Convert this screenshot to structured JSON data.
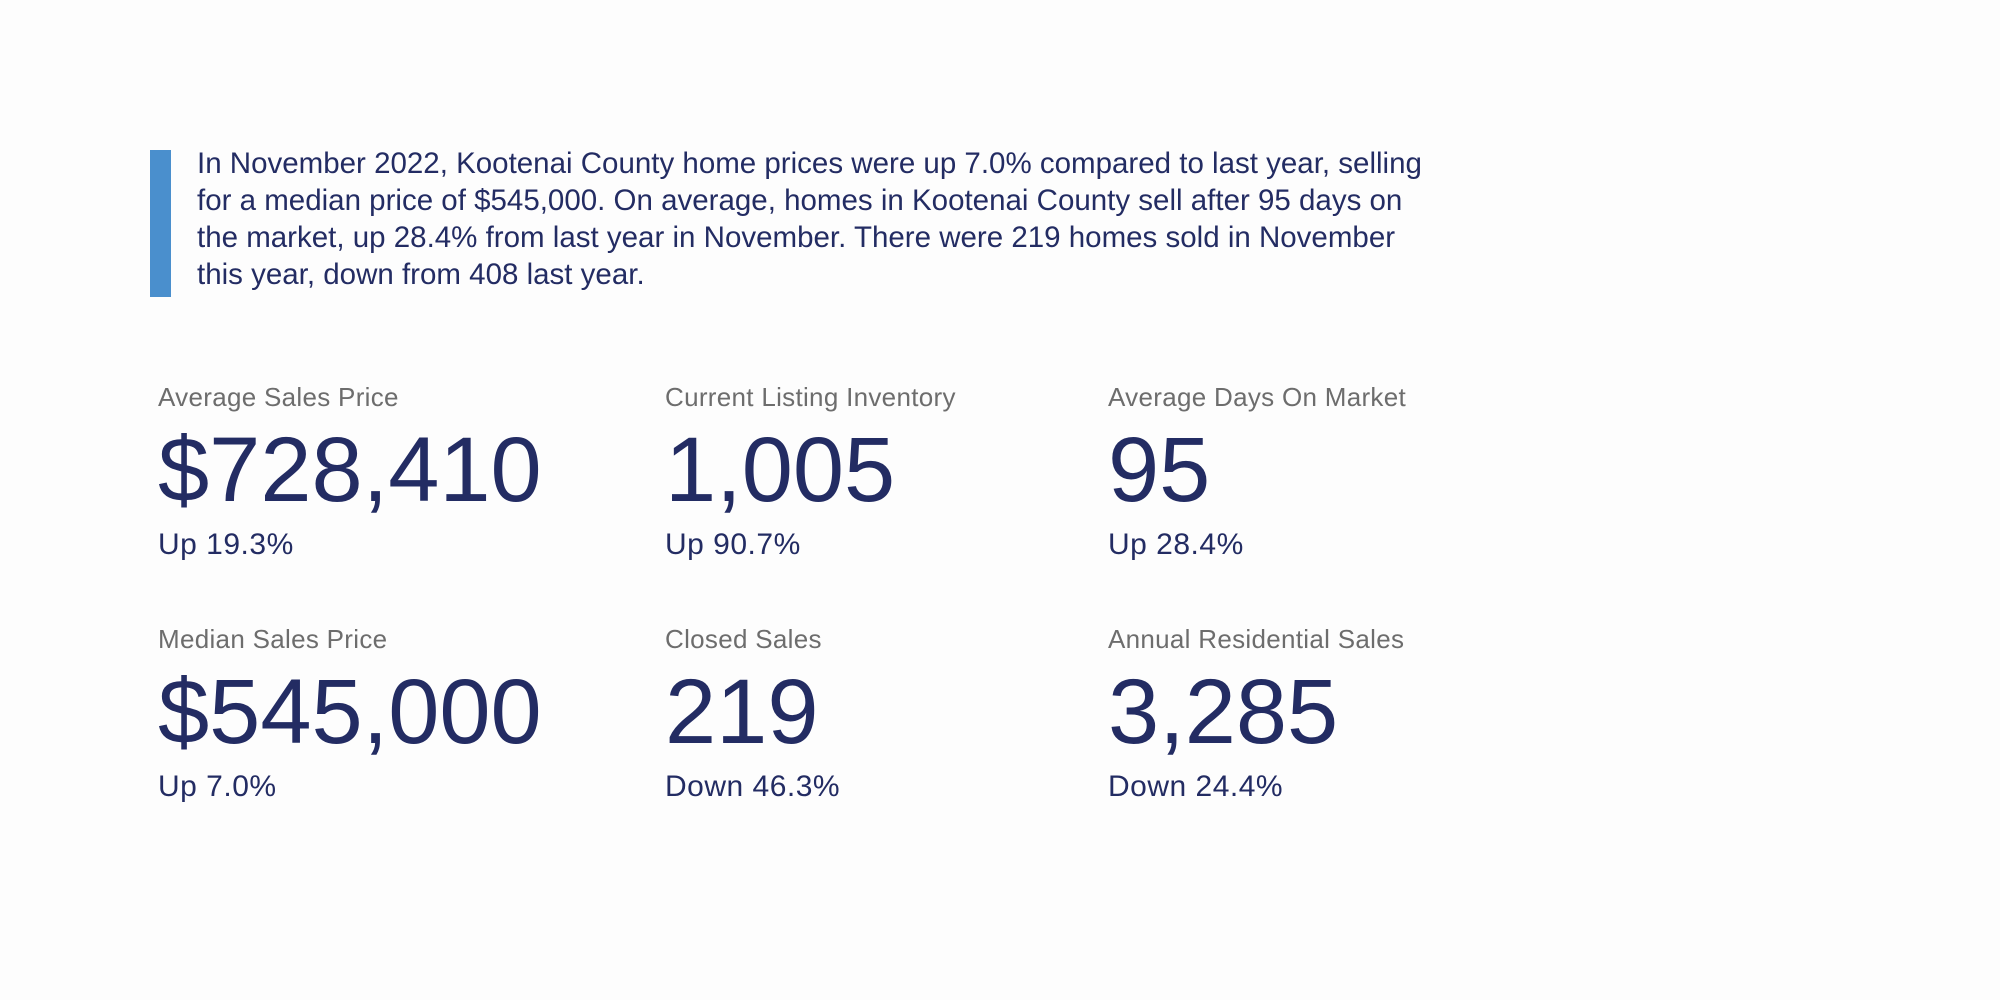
{
  "summary": "In November 2022, Kootenai County home prices were up 7.0% compared to last year, selling for a median price of $545,000. On average, homes in Kootenai County sell after 95 days on the market, up 28.4% from last year in November. There were 219 homes sold in November this year, down from 408 last year.",
  "accent_color": "#4a8fcd",
  "text_color": "#232c63",
  "stats": [
    {
      "label": "Average Sales Price",
      "value": "$728,410",
      "change": "Up 19.3%"
    },
    {
      "label": "Current Listing Inventory",
      "value": "1,005",
      "change": "Up 90.7%"
    },
    {
      "label": "Average Days On Market",
      "value": "95",
      "change": "Up 28.4%"
    },
    {
      "label": "Median Sales Price",
      "value": "$545,000",
      "change": "Up 7.0%"
    },
    {
      "label": "Closed Sales",
      "value": "219",
      "change": "Down 46.3%"
    },
    {
      "label": "Annual Residential Sales",
      "value": "3,285",
      "change": "Down 24.4%"
    }
  ]
}
